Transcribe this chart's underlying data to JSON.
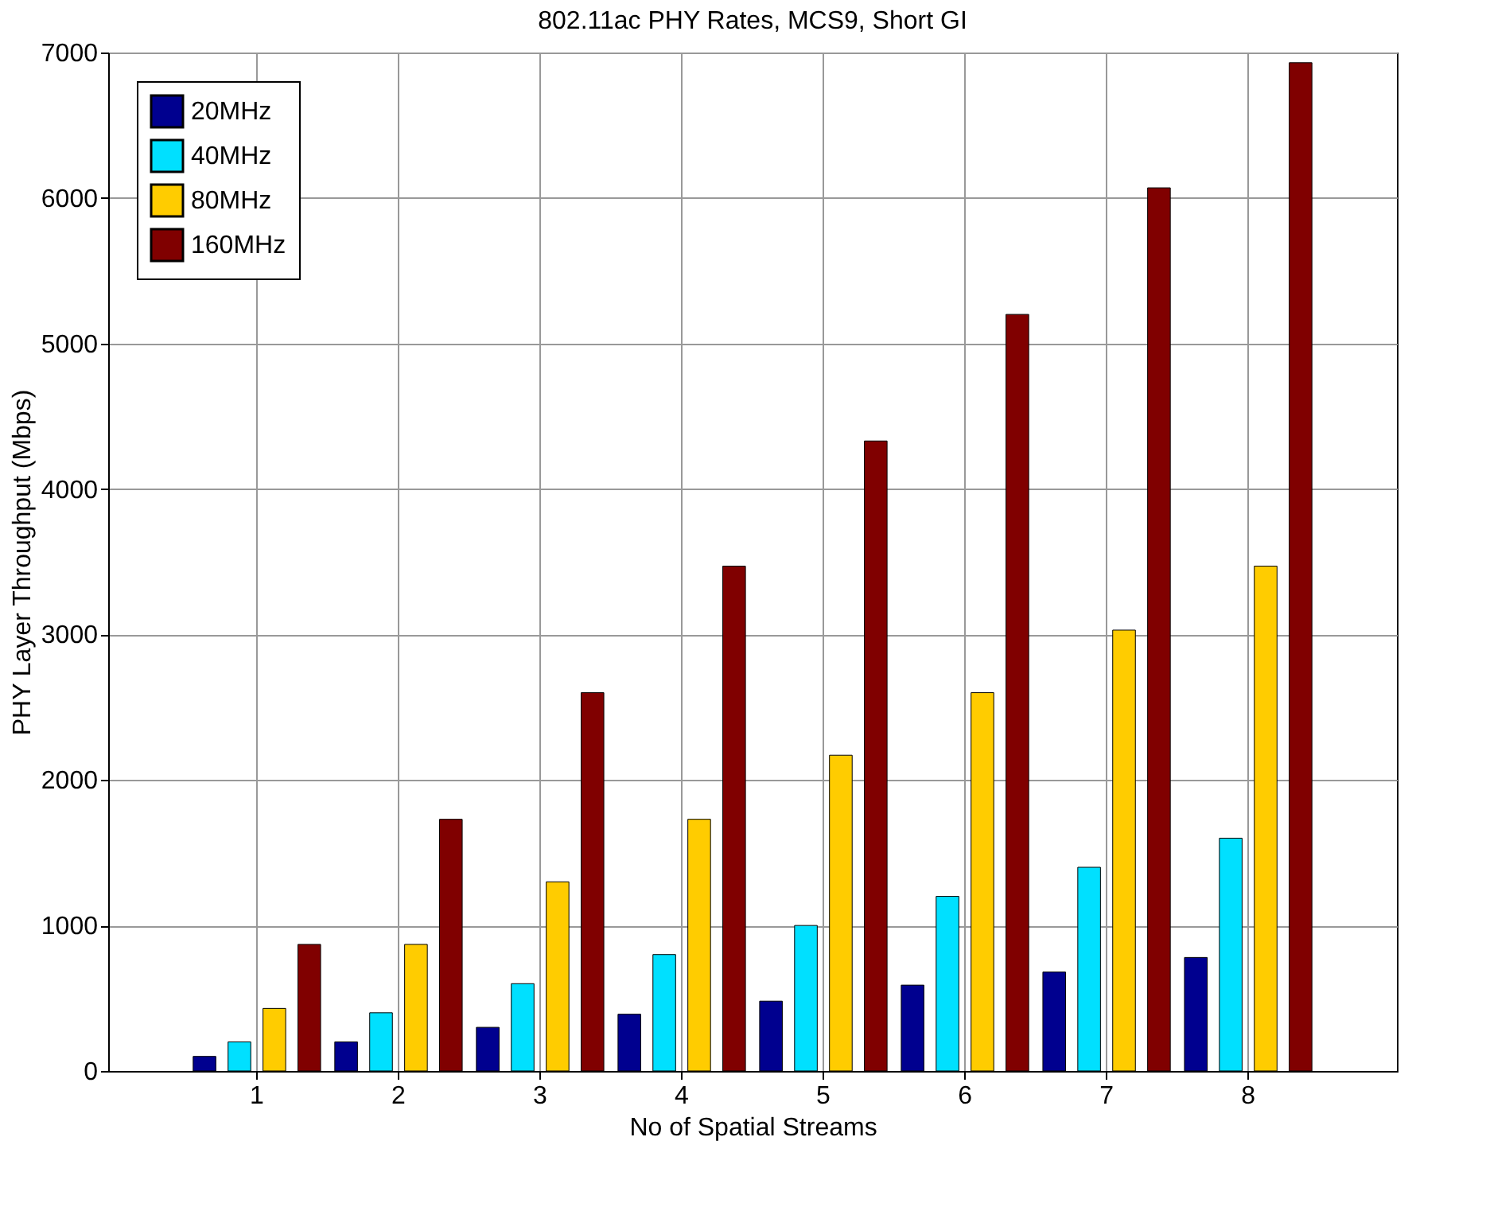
{
  "chart_data": {
    "type": "bar",
    "title": "802.11ac PHY Rates, MCS9, Short GI",
    "xlabel": "No of Spatial Streams",
    "ylabel": "PHY Layer Throughput (Mbps)",
    "categories": [
      "1",
      "2",
      "3",
      "4",
      "5",
      "6",
      "7",
      "8"
    ],
    "series": [
      {
        "name": "20MHz",
        "color": "#00008f",
        "values": [
          100,
          200,
          300,
          390,
          480,
          590,
          680,
          780
        ]
      },
      {
        "name": "40MHz",
        "color": "#00e0ff",
        "values": [
          200,
          400,
          600,
          800,
          1000,
          1200,
          1400,
          1600
        ]
      },
      {
        "name": "80MHz",
        "color": "#ffcc00",
        "values": [
          430,
          870,
          1300,
          1730,
          2170,
          2600,
          3030,
          3470
        ]
      },
      {
        "name": "160MHz",
        "color": "#800000",
        "values": [
          870,
          1730,
          2600,
          3470,
          4330,
          5200,
          6070,
          6930
        ]
      }
    ],
    "ylim": [
      0,
      7000
    ],
    "yticks": [
      0,
      1000,
      2000,
      3000,
      4000,
      5000,
      6000,
      7000
    ],
    "grid": true,
    "legend": "top left"
  }
}
